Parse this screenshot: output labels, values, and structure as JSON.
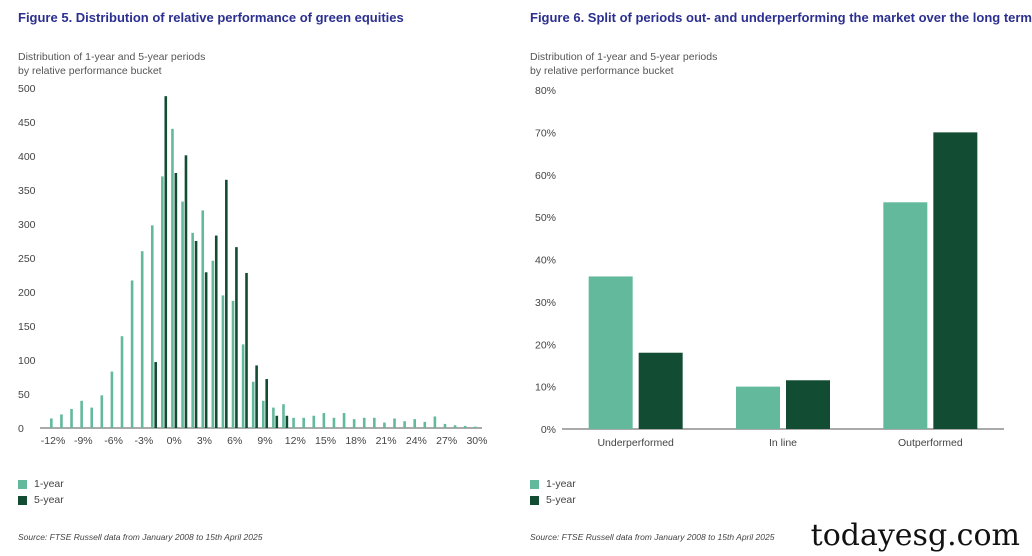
{
  "colors": {
    "one_year": "#63b99c",
    "five_year": "#124d33",
    "title": "#2b2f8f",
    "axis": "#555555"
  },
  "left": {
    "title": "Figure 5. Distribution of relative performance of green equities",
    "subtitle_line1": "Distribution of 1-year and 5-year periods",
    "subtitle_line2": "by relative performance bucket",
    "legend": {
      "one_year": "1-year",
      "five_year": "5-year"
    },
    "source": "Source: FTSE Russell data from January 2008 to 15th April 2025"
  },
  "right": {
    "title": "Figure 6. Split of periods out- and underperforming the market over the long term",
    "subtitle_line1": "Distribution of 1-year and 5-year periods",
    "subtitle_line2": "by relative performance bucket",
    "legend": {
      "one_year": "1-year",
      "five_year": "5-year"
    },
    "source": "Source: FTSE Russell data from January 2008 to 15th April 2025"
  },
  "watermark": "todayesg.com",
  "chart_data": [
    {
      "type": "bar",
      "title": "Figure 5. Distribution of relative performance of green equities",
      "xlabel": "",
      "ylabel": "",
      "ylim": [
        0,
        500
      ],
      "yticks": [
        "500",
        "450",
        "400",
        "350",
        "300",
        "250",
        "200",
        "150",
        "100",
        "50",
        "0"
      ],
      "yticks_values": [
        500,
        450,
        400,
        350,
        300,
        250,
        200,
        150,
        100,
        50,
        0
      ],
      "xticks": [
        "-12%",
        "-9%",
        "-6%",
        "-3%",
        "0%",
        "3%",
        "6%",
        "9%",
        "12%",
        "15%",
        "18%",
        "21%",
        "24%",
        "27%",
        "30%"
      ],
      "xticks_values": [
        -12,
        -9,
        -6,
        -3,
        0,
        3,
        6,
        9,
        12,
        15,
        18,
        21,
        24,
        27,
        30
      ],
      "x": [
        -12,
        -11,
        -10,
        -9,
        -8,
        -7,
        -6,
        -5,
        -4,
        -3,
        -2,
        -1,
        0,
        1,
        2,
        3,
        4,
        5,
        6,
        7,
        8,
        9,
        10,
        11,
        12,
        13,
        14,
        15,
        16,
        17,
        18,
        19,
        20,
        21,
        22,
        23,
        24,
        25,
        26,
        27,
        28,
        29,
        30
      ],
      "series": [
        {
          "name": "1-year",
          "values": [
            14,
            20,
            28,
            40,
            30,
            48,
            83,
            135,
            217,
            260,
            298,
            370,
            440,
            333,
            287,
            320,
            246,
            195,
            187,
            123,
            68,
            40,
            30,
            35,
            15,
            15,
            18,
            22,
            15,
            22,
            13,
            15,
            15,
            8,
            14,
            10,
            13,
            9,
            17,
            6,
            4,
            3,
            2
          ]
        },
        {
          "name": "5-year",
          "values": [
            0,
            0,
            0,
            0,
            0,
            0,
            0,
            0,
            0,
            0,
            97,
            488,
            375,
            401,
            275,
            229,
            283,
            365,
            266,
            228,
            92,
            72,
            18,
            18,
            0,
            0,
            0,
            0,
            0,
            0,
            0,
            0,
            0,
            0,
            0,
            0,
            0,
            0,
            0,
            0,
            0,
            0,
            0
          ]
        }
      ],
      "legend": [
        "1-year",
        "5-year"
      ]
    },
    {
      "type": "bar",
      "title": "Figure 6. Split of periods out- and underperforming the market over the long term",
      "xlabel": "",
      "ylabel": "",
      "ylim": [
        0,
        80
      ],
      "yticks": [
        "80%",
        "70%",
        "60%",
        "50%",
        "40%",
        "30%",
        "20%",
        "10%",
        "0%"
      ],
      "yticks_values": [
        80,
        70,
        60,
        50,
        40,
        30,
        20,
        10,
        0
      ],
      "categories": [
        "Underperformed",
        "In line",
        "Outperformed"
      ],
      "series": [
        {
          "name": "1-year",
          "values": [
            36,
            10,
            53.5
          ]
        },
        {
          "name": "5-year",
          "values": [
            18,
            11.5,
            70
          ]
        }
      ],
      "legend": [
        "1-year",
        "5-year"
      ]
    }
  ]
}
